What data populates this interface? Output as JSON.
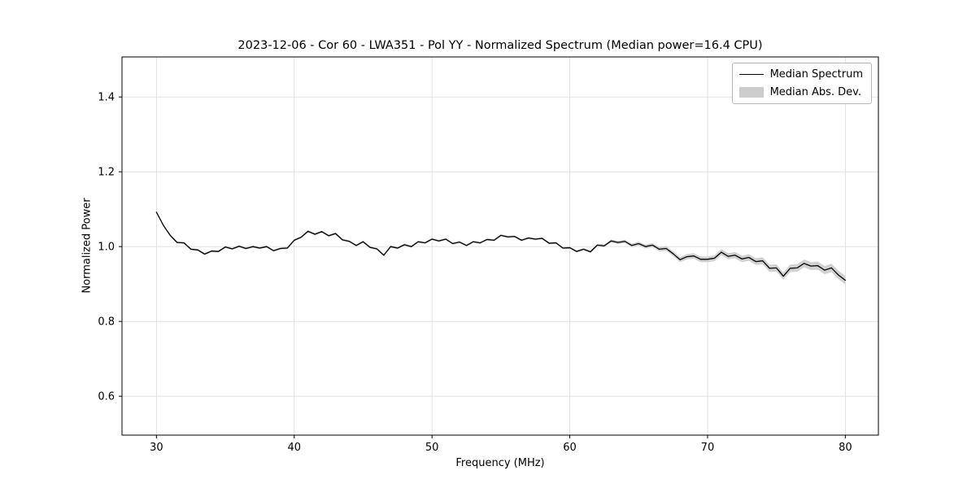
{
  "chart_data": {
    "type": "line",
    "title": "2023-12-06 - Cor 60 - LWA351 - Pol YY - Normalized Spectrum (Median power=16.4 CPU)",
    "xlabel": "Frequency (MHz)",
    "ylabel": "Normalized Power",
    "xlim": [
      27.5,
      82.4
    ],
    "ylim": [
      0.496,
      1.507
    ],
    "xticks": [
      30,
      40,
      50,
      60,
      70,
      80
    ],
    "yticks": [
      0.6,
      0.8,
      1.0,
      1.2,
      1.4
    ],
    "grid": true,
    "legend_position": "upper right",
    "colors": {
      "line": "#000000",
      "band": "#cccccc",
      "grid": "#dcdcdc",
      "axes": "#000000",
      "background": "#ffffff"
    },
    "legend": [
      {
        "label": "Median Spectrum",
        "type": "line",
        "color": "#000000"
      },
      {
        "label": "Median Abs. Dev.",
        "type": "patch",
        "color": "#cccccc"
      }
    ],
    "x": [
      30.0,
      30.5,
      31.0,
      31.5,
      32.0,
      32.5,
      33.0,
      33.5,
      34.0,
      34.5,
      35.0,
      35.5,
      36.0,
      36.5,
      37.0,
      37.5,
      38.0,
      38.5,
      39.0,
      39.5,
      40.0,
      40.5,
      41.0,
      41.5,
      42.0,
      42.5,
      43.0,
      43.5,
      44.0,
      44.5,
      45.0,
      45.5,
      46.0,
      46.5,
      47.0,
      47.5,
      48.0,
      48.5,
      49.0,
      49.5,
      50.0,
      50.5,
      51.0,
      51.5,
      52.0,
      52.5,
      53.0,
      53.5,
      54.0,
      54.5,
      55.0,
      55.5,
      56.0,
      56.5,
      57.0,
      57.5,
      58.0,
      58.5,
      59.0,
      59.5,
      60.0,
      60.5,
      61.0,
      61.5,
      62.0,
      62.5,
      63.0,
      63.5,
      64.0,
      64.5,
      65.0,
      65.5,
      66.0,
      66.5,
      67.0,
      67.5,
      68.0,
      68.5,
      69.0,
      69.5,
      70.0,
      70.5,
      71.0,
      71.5,
      72.0,
      72.5,
      73.0,
      73.5,
      74.0,
      74.5,
      75.0,
      75.5,
      76.0,
      76.5,
      77.0,
      77.5,
      78.0,
      78.5,
      79.0,
      79.5,
      80.0
    ],
    "median": [
      1.092,
      1.057,
      1.03,
      1.011,
      1.01,
      0.993,
      0.991,
      0.98,
      0.988,
      0.987,
      0.999,
      0.994,
      1.001,
      0.995,
      1.0,
      0.996,
      1.0,
      0.989,
      0.995,
      0.996,
      1.017,
      1.025,
      1.041,
      1.033,
      1.04,
      1.029,
      1.035,
      1.018,
      1.014,
      1.003,
      1.013,
      0.998,
      0.994,
      0.977,
      1.0,
      0.996,
      1.005,
      1.0,
      1.013,
      1.01,
      1.02,
      1.015,
      1.02,
      1.008,
      1.012,
      1.003,
      1.013,
      1.01,
      1.019,
      1.017,
      1.03,
      1.026,
      1.027,
      1.017,
      1.023,
      1.02,
      1.022,
      1.009,
      1.01,
      0.996,
      0.997,
      0.987,
      0.993,
      0.986,
      1.004,
      1.002,
      1.015,
      1.011,
      1.014,
      1.003,
      1.008,
      1.0,
      1.004,
      0.993,
      0.995,
      0.981,
      0.965,
      0.973,
      0.975,
      0.966,
      0.966,
      0.969,
      0.985,
      0.974,
      0.977,
      0.967,
      0.971,
      0.96,
      0.962,
      0.942,
      0.943,
      0.921,
      0.942,
      0.943,
      0.955,
      0.948,
      0.949,
      0.937,
      0.943,
      0.924,
      0.91
    ],
    "mad": [
      0.003,
      0.003,
      0.003,
      0.003,
      0.003,
      0.003,
      0.003,
      0.003,
      0.003,
      0.003,
      0.003,
      0.003,
      0.003,
      0.003,
      0.003,
      0.003,
      0.003,
      0.003,
      0.003,
      0.003,
      0.003,
      0.003,
      0.003,
      0.003,
      0.003,
      0.003,
      0.003,
      0.003,
      0.003,
      0.003,
      0.003,
      0.003,
      0.003,
      0.003,
      0.003,
      0.003,
      0.003,
      0.003,
      0.003,
      0.003,
      0.003,
      0.003,
      0.003,
      0.003,
      0.003,
      0.003,
      0.003,
      0.003,
      0.003,
      0.003,
      0.003,
      0.003,
      0.003,
      0.003,
      0.003,
      0.003,
      0.003,
      0.003,
      0.003,
      0.003,
      0.003,
      0.0032,
      0.0034,
      0.0036,
      0.0038,
      0.004,
      0.0042,
      0.0044,
      0.0046,
      0.0048,
      0.005,
      0.0053,
      0.0056,
      0.0059,
      0.0062,
      0.0065,
      0.0068,
      0.007,
      0.0072,
      0.0074,
      0.0076,
      0.0078,
      0.008,
      0.0082,
      0.0084,
      0.0086,
      0.0088,
      0.009,
      0.0092,
      0.0094,
      0.0096,
      0.0098,
      0.01,
      0.0102,
      0.0104,
      0.0106,
      0.0108,
      0.011,
      0.0112,
      0.0114,
      0.0116
    ]
  }
}
